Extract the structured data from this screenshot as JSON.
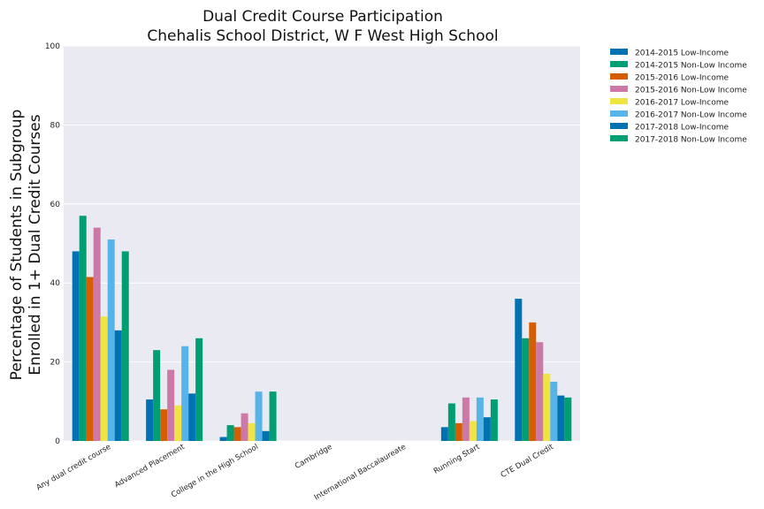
{
  "chart_data": {
    "type": "bar",
    "title": "Dual Credit Course Participation",
    "subtitle": "Chehalis School District, W F West High School",
    "xlabel": "",
    "ylabel_lines": [
      "Percentage of Students in Subgroup",
      "Enrolled in 1+ Dual Credit Courses"
    ],
    "ylim": [
      0,
      100
    ],
    "yticks": [
      "0",
      "20",
      "40",
      "60",
      "80",
      "100"
    ],
    "grid": true,
    "legend_position": "outside-top-right",
    "categories": [
      "Any dual credit course",
      "Advanced Placement",
      "College in the High School",
      "Cambridge",
      "International Baccalaureate",
      "Running Start",
      "CTE Dual Credit"
    ],
    "series": [
      {
        "name": "2014-2015 Low-Income",
        "color": "#0072B2",
        "values": [
          48,
          10.5,
          1,
          0,
          0,
          3.5,
          36
        ]
      },
      {
        "name": "2014-2015 Non-Low Income",
        "color": "#009E73",
        "values": [
          57,
          23,
          4,
          0,
          0,
          9.5,
          26
        ]
      },
      {
        "name": "2015-2016 Low-Income",
        "color": "#D55E00",
        "values": [
          41.5,
          8,
          3.5,
          0,
          0,
          4.5,
          30
        ]
      },
      {
        "name": "2015-2016 Non-Low Income",
        "color": "#CC79A7",
        "values": [
          54,
          18,
          7,
          0,
          0,
          11,
          25
        ]
      },
      {
        "name": "2016-2017 Low-Income",
        "color": "#F0E442",
        "values": [
          31.5,
          9,
          4.5,
          0,
          0,
          5,
          17
        ]
      },
      {
        "name": "2016-2017 Non-Low Income",
        "color": "#56B4E9",
        "values": [
          51,
          24,
          12.5,
          0,
          0,
          11,
          15
        ]
      },
      {
        "name": "2017-2018 Low-Income",
        "color": "#0072B2",
        "values": [
          28,
          12,
          2.5,
          0,
          0,
          6,
          11.5
        ]
      },
      {
        "name": "2017-2018 Non-Low Income",
        "color": "#009E73",
        "values": [
          48,
          26,
          12.5,
          0,
          0,
          10.5,
          11
        ]
      }
    ]
  }
}
